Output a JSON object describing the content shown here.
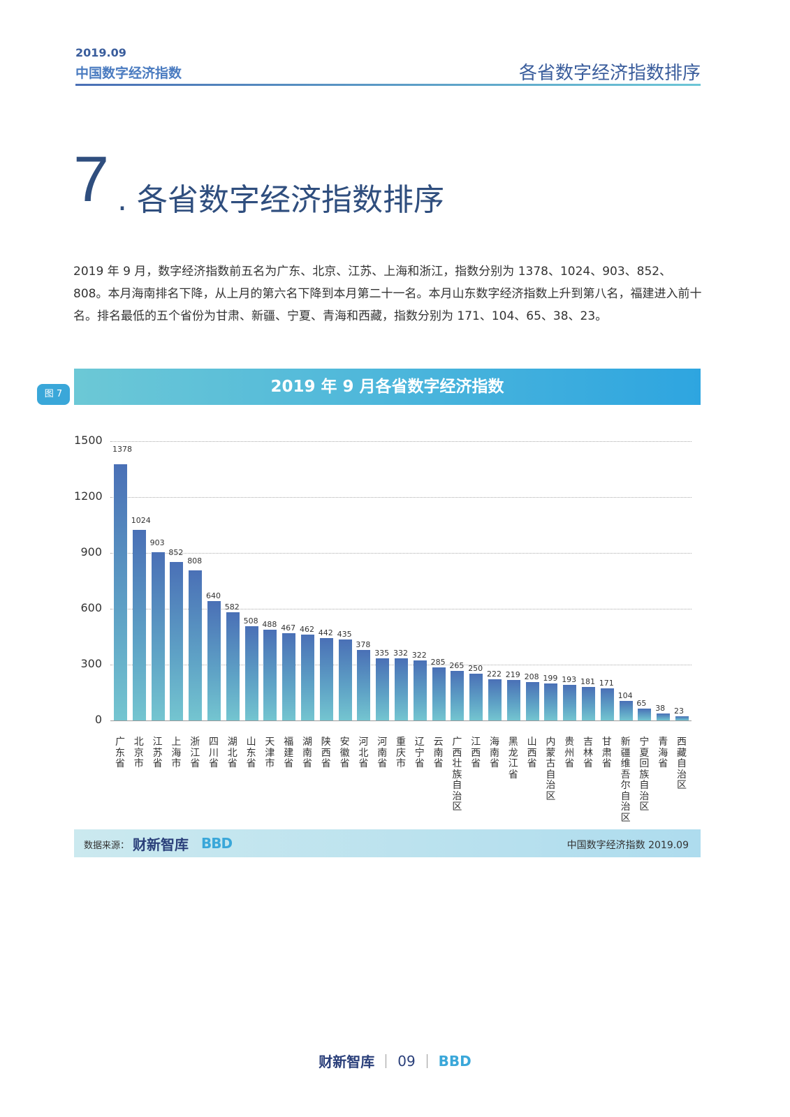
{
  "header": {
    "date": "2019.09",
    "brand": "中国数字经济指数",
    "section": "各省数字经济指数排序"
  },
  "section": {
    "number": "7",
    "title": ". 各省数字经济指数排序"
  },
  "body_text": "2019 年 9 月，数字经济指数前五名为广东、北京、江苏、上海和浙江，指数分别为 1378、1024、903、852、808。本月海南排名下降，从上月的第六名下降到本月第二十一名。本月山东数字经济指数上升到第八名，福建进入前十名。排名最低的五个省份为甘肃、新疆、宁夏、青海和西藏，指数分别为 171、104、65、38、23。",
  "figure_tag": "图 7",
  "chart_data": {
    "type": "bar",
    "title": "2019 年 9 月各省数字经济指数",
    "xlabel": "",
    "ylabel": "",
    "ylim": [
      0,
      1500
    ],
    "yticks": [
      "0",
      "300",
      "600",
      "900",
      "1200",
      "1500"
    ],
    "grid": true,
    "categories": [
      "广东省",
      "北京市",
      "江苏省",
      "上海市",
      "浙江省",
      "四川省",
      "湖北省",
      "山东省",
      "天津市",
      "福建省",
      "湖南省",
      "陕西省",
      "安徽省",
      "河北省",
      "河南省",
      "重庆市",
      "辽宁省",
      "云南省",
      "广西壮族自治区",
      "江西省",
      "海南省",
      "黑龙江省",
      "山西省",
      "内蒙古自治区",
      "贵州省",
      "吉林省",
      "甘肃省",
      "新疆维吾尔自治区",
      "宁夏回族自治区",
      "青海省",
      "西藏自治区"
    ],
    "values": [
      1378,
      1024,
      903,
      852,
      808,
      640,
      582,
      508,
      488,
      467,
      462,
      442,
      435,
      378,
      335,
      332,
      322,
      285,
      265,
      250,
      222,
      219,
      208,
      199,
      193,
      181,
      171,
      104,
      65,
      38,
      23
    ]
  },
  "source": {
    "label": "数据来源：",
    "logo": "财新智库",
    "logo2": "BBD",
    "right": "中国数字经济指数 2019.09"
  },
  "footer": {
    "logo": "财新智库",
    "page": "09",
    "logo2": "BBD"
  },
  "colors": {
    "accent": "#3aa7d9",
    "bar_top": "#4a70b6",
    "bar_bottom": "#74c5d0",
    "title": "#2f4e7e"
  }
}
